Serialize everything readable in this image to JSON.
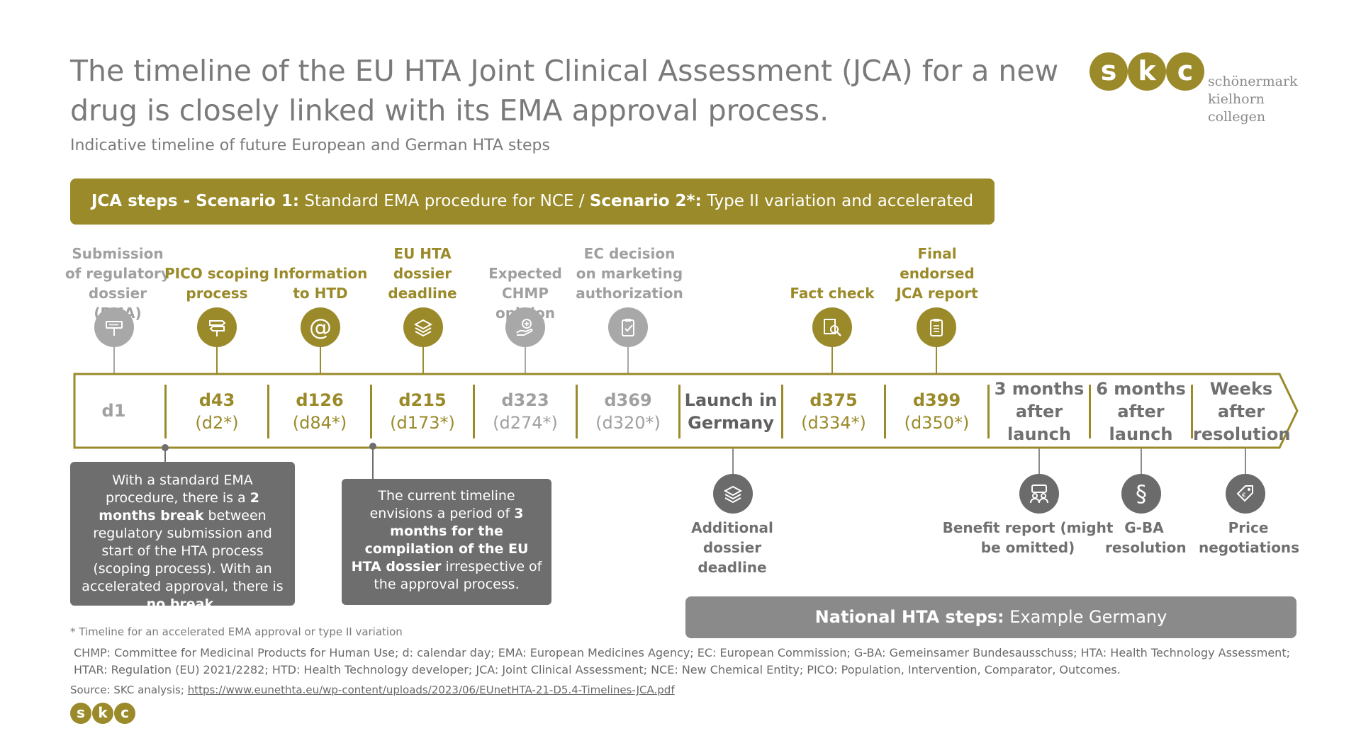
{
  "title": "The timeline of the EU HTA Joint Clinical Assessment (JCA) for a new drug is closely linked with its EMA approval process.",
  "subtitle": "Indicative timeline of future European and German HTA steps",
  "logo": {
    "glyphs": [
      "s",
      "k",
      "c"
    ],
    "lines": [
      "schönermark",
      "kielhorn",
      "collegen"
    ]
  },
  "banner": {
    "part1_bold": "JCA steps - Scenario 1:",
    "part1": " Standard EMA procedure for NCE / ",
    "part2_bold": "Scenario 2*:",
    "part2": " Type II variation and accelerated approval"
  },
  "colors": {
    "olive": "#9a8a2a",
    "gray": "#a0a0a0",
    "dark": "#6e6e6e"
  },
  "top_steps": [
    {
      "label": "Submission of regulatory dossier (EMA)",
      "icon": "signpost-icon",
      "tone": "gray"
    },
    {
      "label": "PICO scoping process",
      "icon": "direction-sign-icon",
      "tone": "olive"
    },
    {
      "label": "Information to HTD",
      "icon": "at-sign-icon",
      "tone": "olive"
    },
    {
      "label": "EU HTA dossier deadline",
      "icon": "document-stack-icon",
      "tone": "olive"
    },
    {
      "label": "Expected CHMP opinion",
      "icon": "hand-medicine-icon",
      "tone": "gray"
    },
    {
      "label": "EC decision on marketing authorization",
      "icon": "clipboard-check-icon",
      "tone": "gray"
    },
    {
      "label": "Fact check",
      "icon": "document-search-icon",
      "tone": "olive"
    },
    {
      "label": "Final endorsed JCA report",
      "icon": "report-icon",
      "tone": "olive"
    }
  ],
  "timeline": [
    {
      "main": "d1",
      "sub": ""
    },
    {
      "main": "d43",
      "sub": "(d2*)"
    },
    {
      "main": "d126",
      "sub": "(d84*)"
    },
    {
      "main": "d215",
      "sub": "(d173*)"
    },
    {
      "main": "d323",
      "sub": "(d274*)"
    },
    {
      "main": "d369",
      "sub": "(d320*)"
    },
    {
      "main": "Launch in",
      "sub": "Germany"
    },
    {
      "main": "d375",
      "sub": "(d334*)"
    },
    {
      "main": "d399",
      "sub": "(d350*)"
    },
    {
      "main": "3 months",
      "sub": "after",
      "sub2": "launch"
    },
    {
      "main": "6 months",
      "sub": "after",
      "sub2": "launch"
    },
    {
      "main": "Weeks",
      "sub": "after",
      "sub2": "resolution"
    }
  ],
  "notes": [
    {
      "t1": "With a standard EMA procedure, there is a ",
      "b1": "2 months break",
      "t2": " between regulatory submission and start of the HTA process (scoping process). With an accelerated approval, there is ",
      "b2": "no break."
    },
    {
      "t1": "The current timeline envisions a period of ",
      "b1": "3 months for the compilation of the EU HTA dossier",
      "t2": " irrespective of the approval process."
    }
  ],
  "national_steps": [
    {
      "label": "Additional dossier deadline",
      "icon": "document-stack-icon"
    },
    {
      "label": "Benefit report (might be omitted)",
      "icon": "people-icon"
    },
    {
      "label": "G-BA resolution",
      "icon": "paragraph-icon"
    },
    {
      "label": "Price negotiations",
      "icon": "price-tag-icon"
    }
  ],
  "national_banner": {
    "bold": "National HTA steps:",
    "text": " Example Germany"
  },
  "footnote": "* Timeline for an accelerated EMA approval or type II variation",
  "abbreviations": "CHMP: Committee for Medicinal Products for Human Use; d: calendar day; EMA: European Medicines Agency;  EC: European Commission; G-BA: Gemeinsamer Bundesausschuss; HTA: Health Technology Assessment; HTAR: Regulation (EU) 2021/2282; HTD: Health Technology developer; JCA: Joint Clinical Assessment; NCE: New Chemical Entity; PICO: Population, Intervention, Comparator, Outcomes.",
  "source": {
    "prefix": "Source: SKC analysis; ",
    "link": "https://www.eunethta.eu/wp-content/uploads/2023/06/EUnetHTA-21-D5.4-Timelines-JCA.pdf"
  }
}
